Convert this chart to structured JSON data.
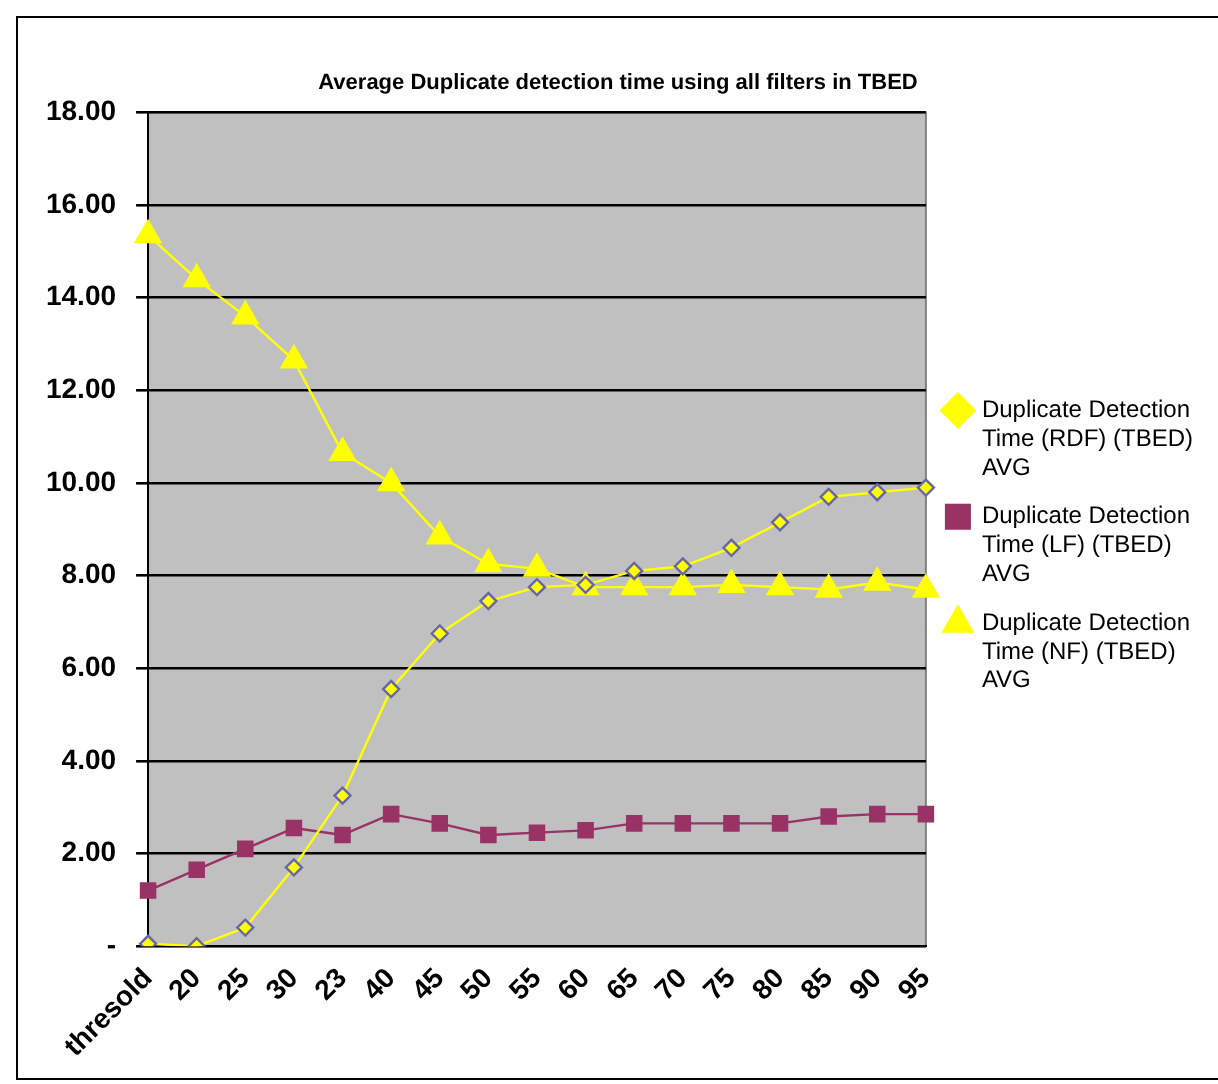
{
  "chart_data": {
    "type": "line",
    "title": "Average Duplicate detection time using all filters in TBED",
    "categories": [
      "thresold",
      "20",
      "25",
      "30",
      "23",
      "40",
      "45",
      "50",
      "55",
      "60",
      "65",
      "70",
      "75",
      "80",
      "85",
      "90",
      "95"
    ],
    "series": [
      {
        "name": "Duplicate Detection Time (RDF) (TBED) AVG",
        "color": "#ffff00",
        "marker": "diamond",
        "values": [
          0.05,
          0,
          0.4,
          1.7,
          3.25,
          5.55,
          6.75,
          7.45,
          7.75,
          7.8,
          8.1,
          8.2,
          8.6,
          9.15,
          9.7,
          9.8,
          9.9
        ]
      },
      {
        "name": "Duplicate Detection Time (LF) (TBED) AVG",
        "color": "#993366",
        "marker": "square",
        "values": [
          1.2,
          1.65,
          2.1,
          2.55,
          2.4,
          2.85,
          2.65,
          2.4,
          2.45,
          2.5,
          2.65,
          2.65,
          2.65,
          2.65,
          2.8,
          2.85,
          2.85
        ]
      },
      {
        "name": "Duplicate Detection Time (NF) (TBED) AVG",
        "color": "#ffff00",
        "marker": "triangle",
        "values": [
          15.35,
          14.4,
          13.6,
          12.65,
          10.65,
          10.0,
          8.85,
          8.25,
          8.15,
          7.75,
          7.75,
          7.75,
          7.8,
          7.75,
          7.7,
          7.85,
          7.7
        ]
      }
    ],
    "ylim": [
      0,
      18
    ],
    "yticks": [
      {
        "value": 0,
        "label": "-"
      },
      {
        "value": 2,
        "label": "2.00"
      },
      {
        "value": 4,
        "label": "4.00"
      },
      {
        "value": 6,
        "label": "6.00"
      },
      {
        "value": 8,
        "label": "8.00"
      },
      {
        "value": 10,
        "label": "10.00"
      },
      {
        "value": 12,
        "label": "12.00"
      },
      {
        "value": 14,
        "label": "14.00"
      },
      {
        "value": 16,
        "label": "16.00"
      },
      {
        "value": 18,
        "label": "18.00"
      }
    ],
    "grid": "y",
    "legend": "right",
    "line_style": "solid"
  }
}
